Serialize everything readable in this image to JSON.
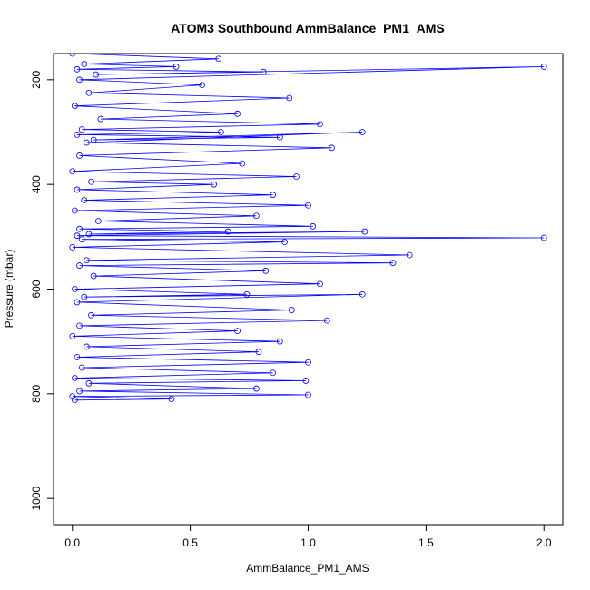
{
  "chart_data": {
    "type": "line",
    "title": "ATOM3 Southbound AmmBalance_PM1_AMS",
    "xlabel": "AmmBalance_PM1_AMS",
    "ylabel": "Pressure (mbar)",
    "xlim": [
      -0.08,
      2.08
    ],
    "ylim": [
      1050,
      150
    ],
    "y_reversed": true,
    "x_ticks": [
      0.0,
      0.5,
      1.0,
      1.5,
      2.0
    ],
    "x_tick_labels": [
      "0.0",
      "0.5",
      "1.0",
      "1.5",
      "2.0"
    ],
    "y_ticks": [
      200,
      400,
      600,
      800,
      1000
    ],
    "y_tick_labels": [
      "200",
      "400",
      "600",
      "800",
      "1000"
    ],
    "grid": false,
    "legend": "none",
    "series_color": "#0000ff",
    "marker": "open-circle",
    "series": [
      {
        "x": [
          0.0,
          0.62,
          0.05,
          0.44,
          0.02,
          0.81,
          0.1,
          2.0,
          0.03,
          0.55,
          0.07,
          0.92,
          0.01,
          0.7,
          0.12,
          1.05,
          0.04,
          0.63,
          0.02,
          0.88,
          0.09,
          1.23,
          0.06,
          1.1,
          0.03,
          0.72,
          0.0,
          0.95,
          0.08,
          0.6,
          0.02,
          0.85,
          0.05,
          1.0,
          0.01,
          0.78,
          0.11,
          1.02,
          0.03,
          0.66,
          0.07,
          1.24,
          0.02,
          2.0,
          0.04,
          0.9,
          0.0,
          1.43,
          0.06,
          1.36,
          0.03,
          0.82,
          0.09,
          1.05,
          0.01,
          0.74,
          0.05,
          1.23,
          0.02,
          0.93,
          0.08,
          1.08,
          0.03,
          0.7,
          0.0,
          0.88,
          0.06,
          0.79,
          0.02,
          1.0,
          0.04,
          0.85,
          0.01,
          0.99,
          0.07,
          0.78,
          0.03,
          1.0,
          0.0,
          0.42,
          0.01
        ],
        "y": [
          150,
          160,
          170,
          175,
          180,
          185,
          190,
          175,
          200,
          210,
          225,
          235,
          250,
          265,
          275,
          285,
          295,
          300,
          305,
          310,
          315,
          300,
          320,
          330,
          345,
          360,
          375,
          385,
          395,
          400,
          410,
          420,
          430,
          440,
          450,
          460,
          470,
          480,
          485,
          490,
          495,
          490,
          498,
          502,
          505,
          510,
          520,
          535,
          545,
          550,
          555,
          565,
          575,
          590,
          600,
          610,
          615,
          610,
          625,
          640,
          650,
          660,
          670,
          680,
          690,
          700,
          710,
          720,
          730,
          740,
          750,
          760,
          770,
          775,
          780,
          790,
          795,
          802,
          805,
          810,
          812
        ]
      }
    ]
  }
}
